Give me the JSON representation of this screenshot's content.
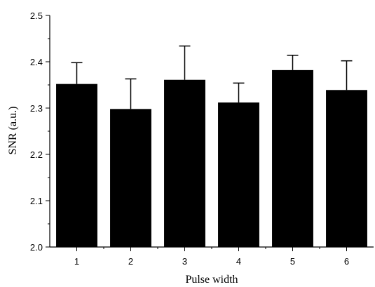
{
  "chart_data": {
    "type": "bar",
    "title": "",
    "xlabel": "Pulse width",
    "ylabel": "SNR (a.u.)",
    "categories": [
      "1",
      "2",
      "3",
      "4",
      "5",
      "6"
    ],
    "values": [
      2.352,
      2.298,
      2.361,
      2.312,
      2.382,
      2.339
    ],
    "errors": [
      0.046,
      0.065,
      0.073,
      0.042,
      0.032,
      0.063
    ],
    "ylim": [
      2.0,
      2.5
    ],
    "yticks": [
      "2.0",
      "2.1",
      "2.2",
      "2.3",
      "2.4",
      "2.5"
    ],
    "grid": false,
    "legend": "none",
    "bar_color": "#000000"
  }
}
